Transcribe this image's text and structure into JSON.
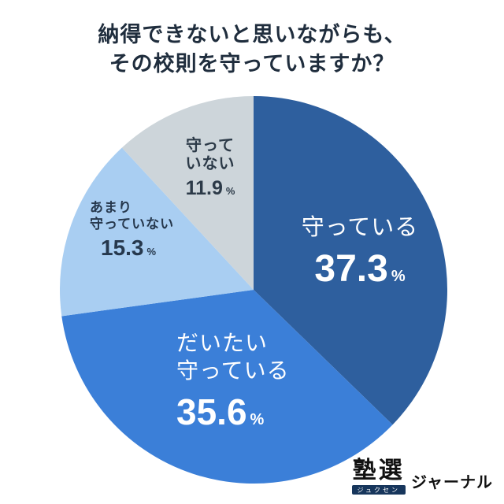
{
  "title": {
    "line1": "納得できないと思いながらも、",
    "line2": "その校則を守っていますか？"
  },
  "chart_data": {
    "type": "pie",
    "title": "納得できないと思いながらも、その校則を守っていますか？",
    "unit": "%",
    "start_angle_deg": 0,
    "direction": "clockwise",
    "legend_position": "none",
    "slices": [
      {
        "label": "守っている",
        "lines": [
          "守っている"
        ],
        "value": 37.3,
        "display_value": "37.3",
        "color": "#2e5f9e",
        "text_color": "#ffffff"
      },
      {
        "label": "だいたい守っている",
        "lines": [
          "だいたい",
          "守っている"
        ],
        "value": 35.6,
        "display_value": "35.6",
        "color": "#3b7fd8",
        "text_color": "#ffffff"
      },
      {
        "label": "あまり守っていない",
        "lines": [
          "あまり",
          "守っていない"
        ],
        "value": 15.3,
        "display_value": "15.3",
        "color": "#a9cef2",
        "text_color": "#26384d"
      },
      {
        "label": "守っていない",
        "lines": [
          "守って",
          "いない"
        ],
        "value": 11.9,
        "display_value": "11.9",
        "color": "#cdd5da",
        "text_color": "#2c3a48"
      }
    ]
  },
  "logo": {
    "brand": "塾選",
    "brand_sub": "ジュクセン",
    "suffix": "ジャーナル"
  }
}
